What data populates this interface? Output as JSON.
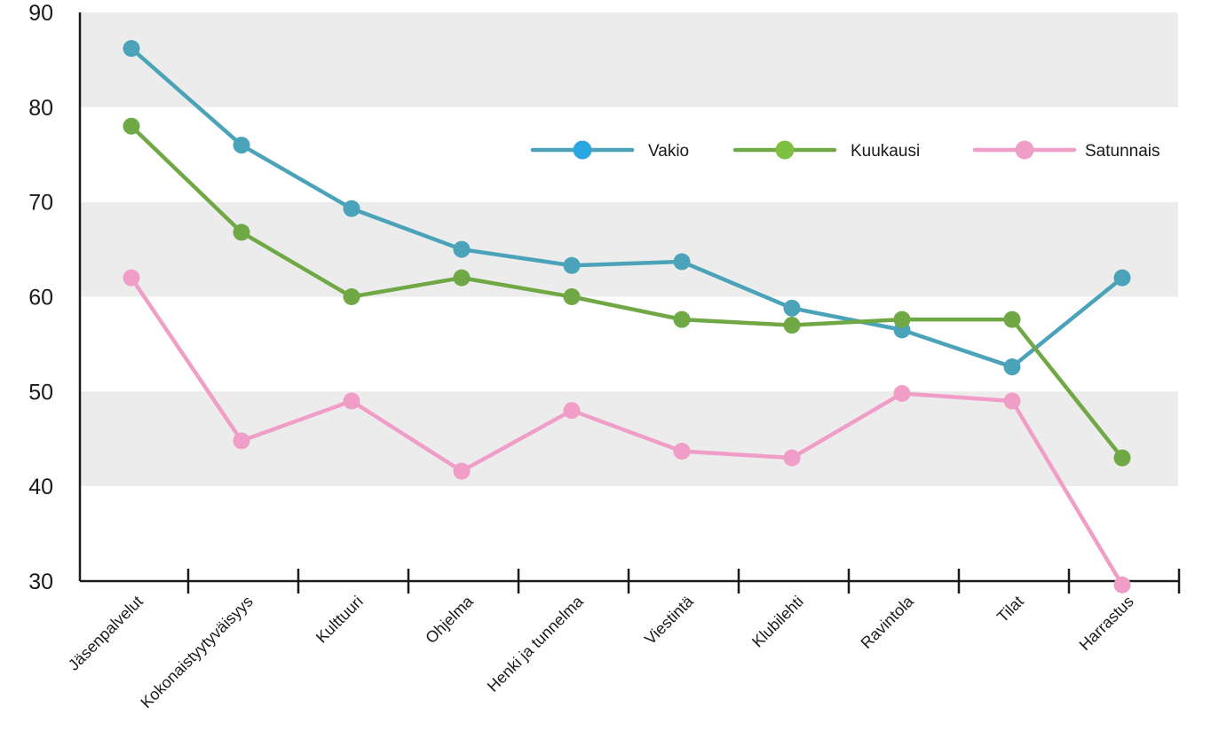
{
  "chart_data": {
    "type": "line",
    "title": "",
    "xlabel": "",
    "ylabel": "",
    "ylim": [
      30,
      90
    ],
    "yticks": [
      30,
      40,
      50,
      60,
      70,
      80,
      90
    ],
    "grid": "alternating horizontal bands",
    "legend_position": "top-right",
    "categories": [
      "Jäsenpalvelut",
      "Kokonaistyytyväisyys",
      "Kulttuuri",
      "Ohjelma",
      "Henki ja tunnelma",
      "Viestintä",
      "Klubilehti",
      "Ravintola",
      "Tilat",
      "Harrastus"
    ],
    "series": [
      {
        "name": "Vakio",
        "color": "#4aa3b8",
        "legend_marker_color": "#2aa7e0",
        "values": [
          86.2,
          76,
          69.3,
          65,
          63.3,
          63.7,
          58.8,
          56.5,
          52.6,
          62
        ]
      },
      {
        "name": "Kuukausi",
        "color": "#6fa845",
        "legend_marker_color": "#7cc142",
        "values": [
          78,
          66.8,
          60,
          62,
          60,
          57.6,
          57,
          57.6,
          57.6,
          43
        ]
      },
      {
        "name": "Satunnais",
        "color": "#f09ec8",
        "legend_marker_color": "#f09ec8",
        "values": [
          62,
          44.8,
          49,
          41.6,
          48,
          43.7,
          43,
          49.8,
          49,
          29.6
        ]
      }
    ],
    "band_color": "#ececec"
  }
}
